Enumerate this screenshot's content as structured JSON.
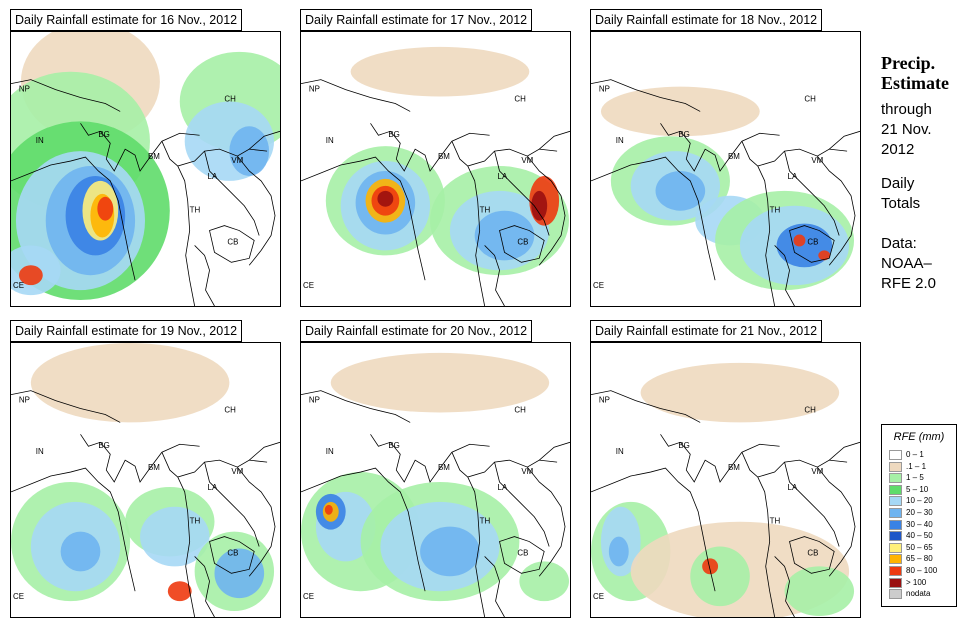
{
  "panels": [
    {
      "title": "Daily Rainfall estimate for  16 Nov., 2012"
    },
    {
      "title": "Daily Rainfall estimate for  17 Nov., 2012"
    },
    {
      "title": "Daily Rainfall estimate for  18 Nov., 2012"
    },
    {
      "title": "Daily Rainfall estimate for  19 Nov., 2012"
    },
    {
      "title": "Daily Rainfall estimate for  20 Nov., 2012"
    },
    {
      "title": "Daily Rainfall estimate for  21 Nov., 2012"
    }
  ],
  "country_labels": {
    "NP": "NP",
    "IN": "IN",
    "BG": "BG",
    "BM": "BM",
    "CH": "CH",
    "VM": "VM",
    "LA": "LA",
    "TH": "TH",
    "CB": "CB",
    "CE": "CE"
  },
  "side": {
    "heading_line1": "Precip.",
    "heading_line2": "Estimate",
    "through": "through",
    "date_line1": "21 Nov.",
    "date_line2": "2012",
    "daily_line1": "Daily",
    "daily_line2": "Totals",
    "data_line1": "Data:",
    "data_line2": "NOAA–",
    "data_line3": "RFE 2.0"
  },
  "legend": {
    "title": "RFE (mm)",
    "items": [
      {
        "label": "0 – 1",
        "color": "#ffffff"
      },
      {
        "label": ".1 – 1",
        "color": "#eed9bf"
      },
      {
        "label": "1 – 5",
        "color": "#a6f0a6"
      },
      {
        "label": "5 – 10",
        "color": "#5fdc6a"
      },
      {
        "label": "10 – 20",
        "color": "#a6d8f5"
      },
      {
        "label": "20 – 30",
        "color": "#6fb4f0"
      },
      {
        "label": "30 – 40",
        "color": "#3a82e4"
      },
      {
        "label": "40 – 50",
        "color": "#1e56c8"
      },
      {
        "label": "50 – 65",
        "color": "#fff07a"
      },
      {
        "label": "65 – 80",
        "color": "#ffb400"
      },
      {
        "label": "80 – 100",
        "color": "#ee3a10"
      },
      {
        "label": "> 100",
        "color": "#9a1010"
      },
      {
        "label": "nodata",
        "color": "#cccccc"
      }
    ]
  }
}
